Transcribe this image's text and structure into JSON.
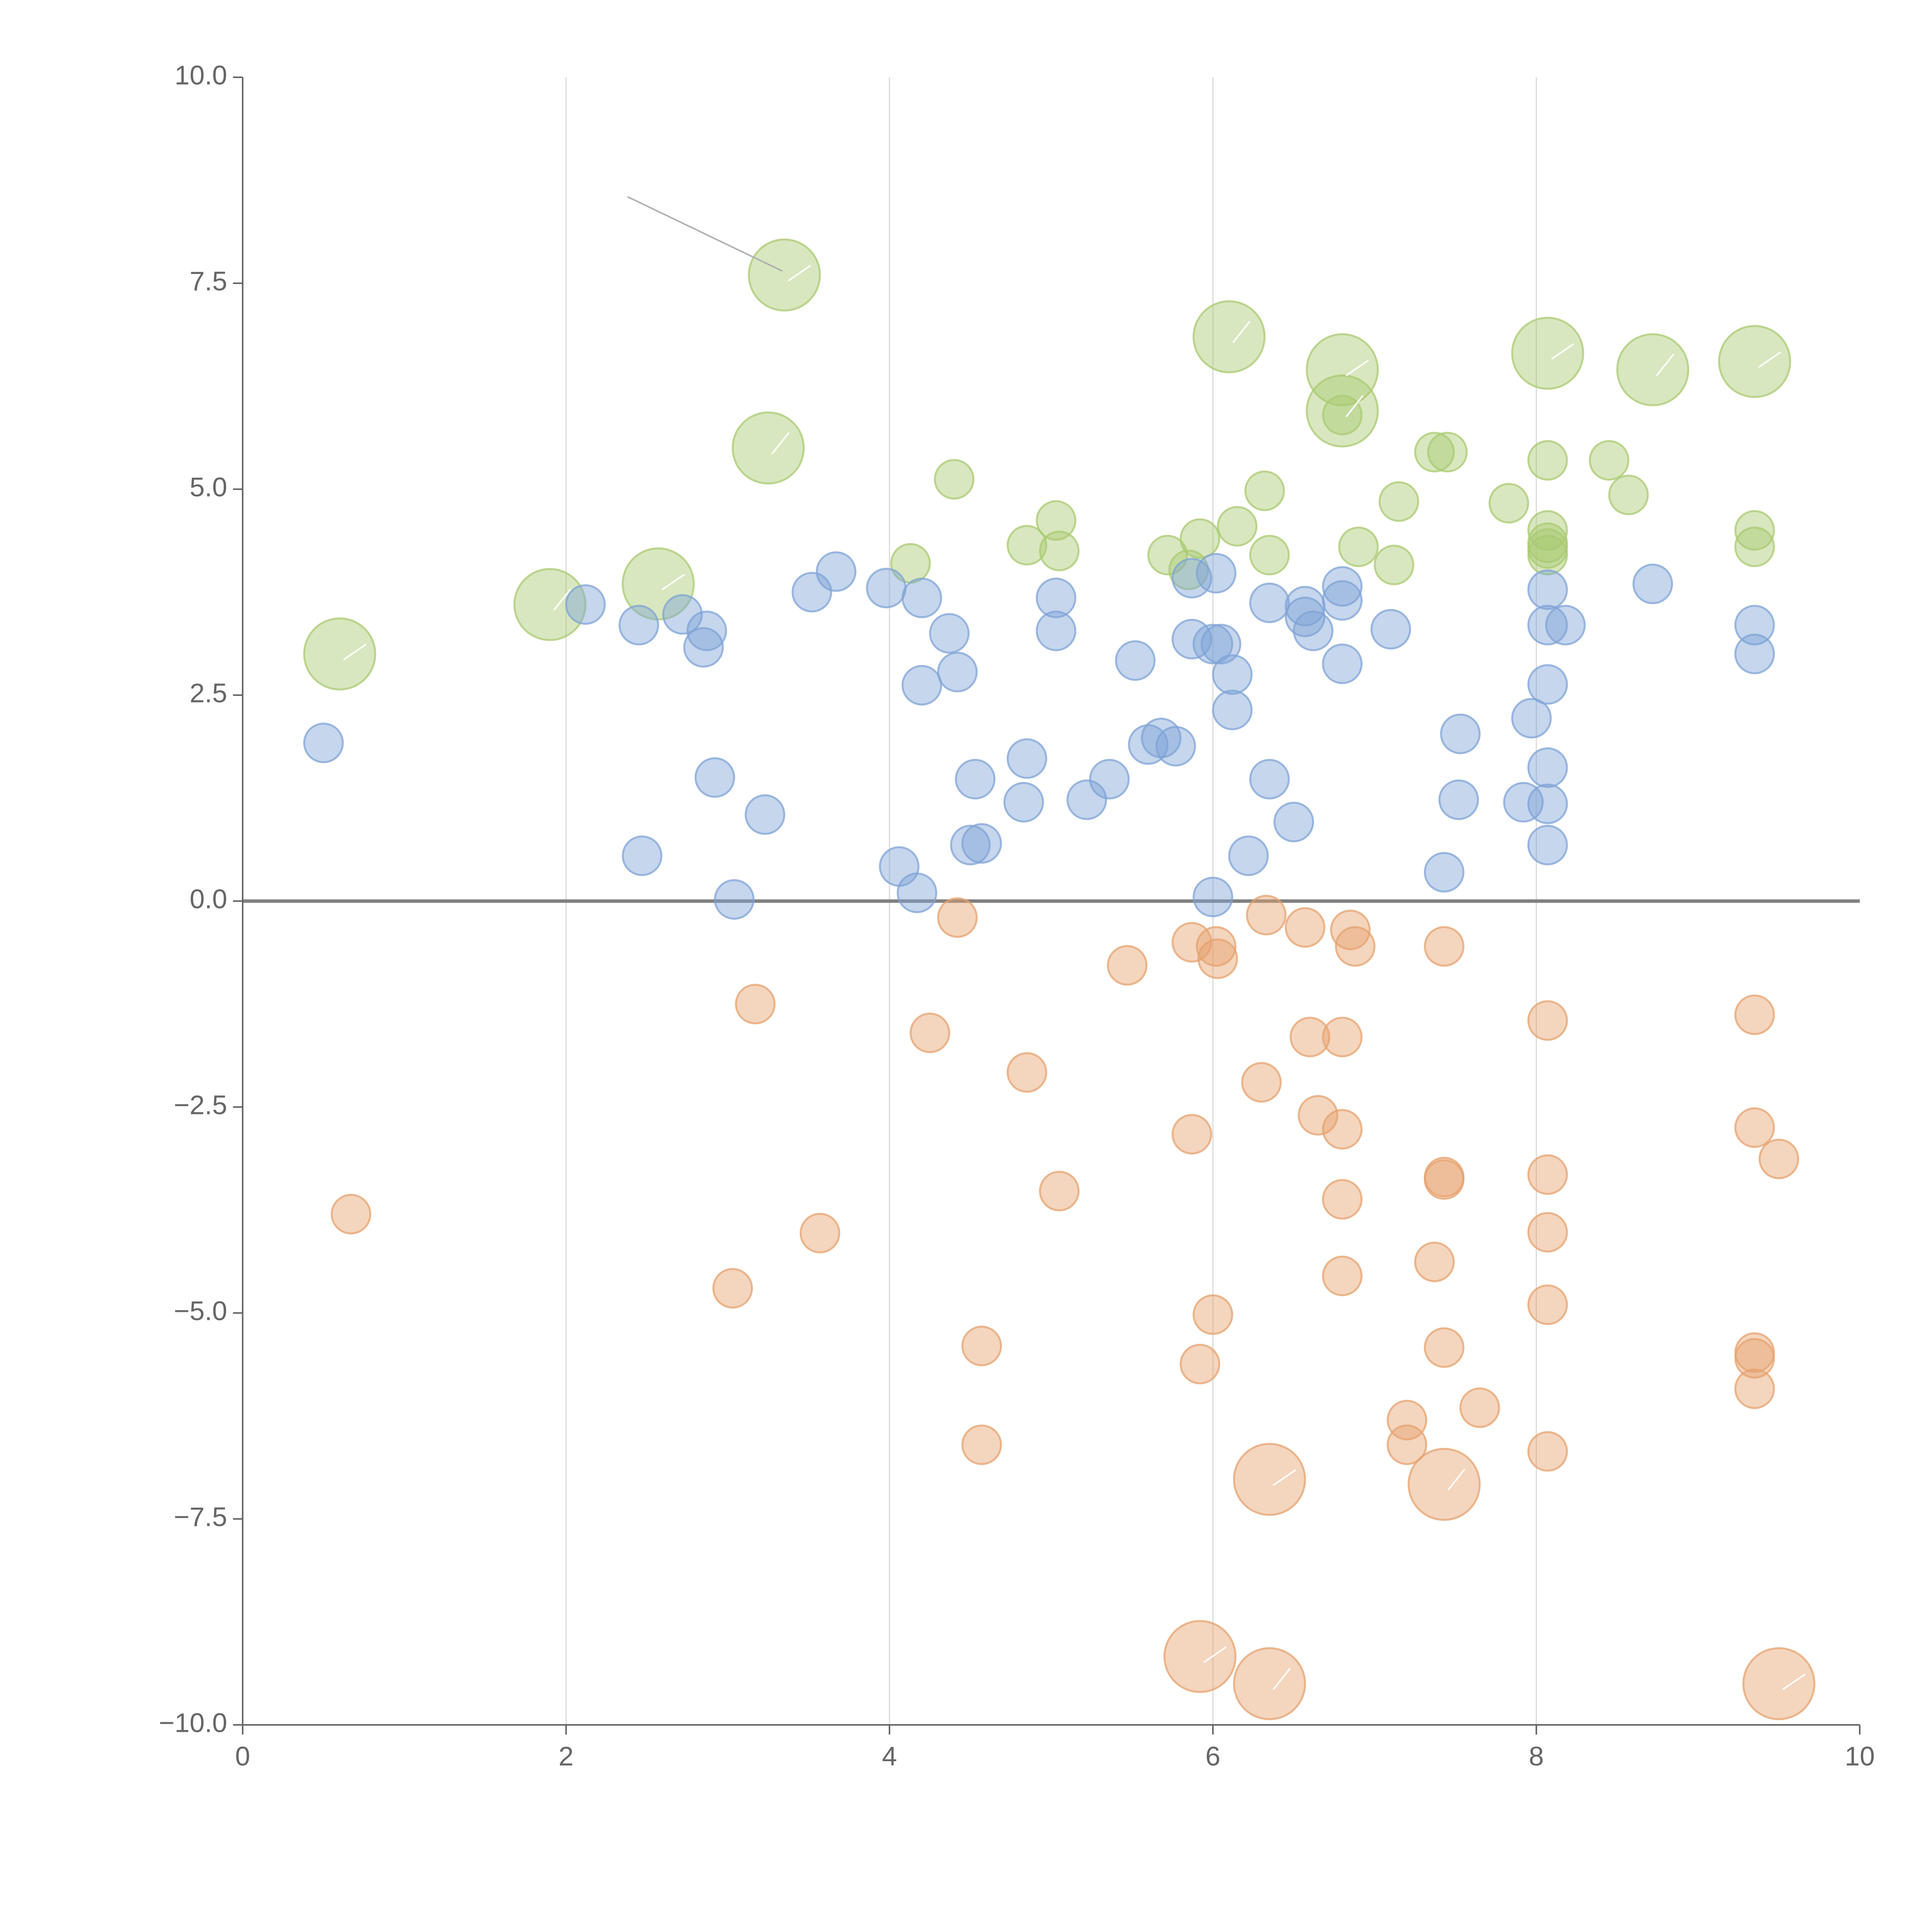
{
  "chart_data": {
    "type": "scatter",
    "title": "",
    "xlabel": "",
    "ylabel": "",
    "xlim": [
      0,
      10
    ],
    "ylim": [
      -10,
      10
    ],
    "grid": "vertical",
    "legend": "none",
    "x_ticks": [
      0,
      2,
      4,
      6,
      8,
      10
    ],
    "x_tick_labels": [
      "0",
      "2",
      "4",
      "6",
      "8",
      "10"
    ],
    "y_ticks": [
      -10,
      -7.5,
      -5,
      -2.5,
      0,
      2.5,
      5,
      7.5,
      10
    ],
    "y_tick_labels": [
      "−10.0",
      "−7.5",
      "−5.0",
      "−2.5",
      "0.0",
      "2.5",
      "5.0",
      "7.5",
      "10.0"
    ],
    "reference_line_y": 0,
    "series": [
      {
        "name": "green",
        "color": "#a9c970",
        "points": [
          [
            0.6,
            3.0,
            2
          ],
          [
            1.9,
            3.6,
            2
          ],
          [
            2.57,
            3.85,
            2
          ],
          [
            3.25,
            5.5,
            2
          ],
          [
            3.35,
            7.6,
            2
          ],
          [
            6.1,
            6.85,
            2
          ],
          [
            6.8,
            6.45,
            2
          ],
          [
            6.8,
            5.95,
            2
          ],
          [
            8.07,
            6.65,
            2
          ],
          [
            8.72,
            6.45,
            2
          ],
          [
            9.35,
            6.55,
            2
          ],
          [
            4.13,
            4.1,
            1
          ],
          [
            4.4,
            5.12,
            1
          ],
          [
            4.85,
            4.32,
            1
          ],
          [
            5.03,
            4.62,
            1
          ],
          [
            5.05,
            4.25,
            1
          ],
          [
            5.72,
            4.2,
            1
          ],
          [
            5.92,
            4.4,
            1
          ],
          [
            5.85,
            4.02,
            1
          ],
          [
            6.15,
            4.55,
            1
          ],
          [
            6.32,
            4.98,
            1
          ],
          [
            6.35,
            4.2,
            1
          ],
          [
            6.8,
            5.9,
            1
          ],
          [
            6.9,
            4.3,
            1
          ],
          [
            7.12,
            4.08,
            1
          ],
          [
            7.15,
            4.85,
            1
          ],
          [
            7.37,
            5.45,
            1
          ],
          [
            7.45,
            5.45,
            1
          ],
          [
            7.83,
            4.83,
            1
          ],
          [
            8.07,
            5.35,
            1
          ],
          [
            8.07,
            4.5,
            1
          ],
          [
            8.07,
            4.35,
            1
          ],
          [
            8.07,
            4.28,
            1
          ],
          [
            8.07,
            4.2,
            1
          ],
          [
            8.45,
            5.35,
            1
          ],
          [
            8.57,
            4.93,
            1
          ],
          [
            9.35,
            4.5,
            1
          ],
          [
            9.35,
            4.3,
            1
          ]
        ]
      },
      {
        "name": "blue",
        "color": "#7fa3d6",
        "points": [
          [
            0.5,
            1.92,
            1
          ],
          [
            2.12,
            3.6,
            1
          ],
          [
            2.45,
            3.35,
            1
          ],
          [
            2.72,
            3.48,
            1
          ],
          [
            2.87,
            3.28,
            1
          ],
          [
            2.85,
            3.08,
            1
          ],
          [
            2.92,
            1.5,
            1
          ],
          [
            3.23,
            1.05,
            1
          ],
          [
            2.47,
            0.55,
            1
          ],
          [
            3.04,
            0.02,
            1
          ],
          [
            3.52,
            3.75,
            1
          ],
          [
            3.67,
            4.0,
            1
          ],
          [
            3.98,
            3.8,
            1
          ],
          [
            4.2,
            3.68,
            1
          ],
          [
            4.37,
            3.25,
            1
          ],
          [
            4.42,
            2.78,
            1
          ],
          [
            4.2,
            2.62,
            1
          ],
          [
            4.06,
            0.42,
            1
          ],
          [
            4.17,
            0.1,
            1
          ],
          [
            4.53,
            1.48,
            1
          ],
          [
            4.5,
            0.68,
            1
          ],
          [
            4.57,
            0.7,
            1
          ],
          [
            4.85,
            1.73,
            1
          ],
          [
            4.83,
            1.2,
            1
          ],
          [
            5.03,
            3.68,
            1
          ],
          [
            5.03,
            3.28,
            1
          ],
          [
            5.22,
            1.23,
            1
          ],
          [
            5.36,
            1.48,
            1
          ],
          [
            5.52,
            2.92,
            1
          ],
          [
            5.6,
            1.9,
            1
          ],
          [
            5.68,
            1.98,
            1
          ],
          [
            5.77,
            1.88,
            1
          ],
          [
            5.87,
            3.92,
            1
          ],
          [
            5.87,
            3.18,
            1
          ],
          [
            6.02,
            3.98,
            1
          ],
          [
            6.0,
            3.12,
            1
          ],
          [
            6.05,
            3.12,
            1
          ],
          [
            6.12,
            2.75,
            1
          ],
          [
            6.12,
            2.32,
            1
          ],
          [
            6.0,
            0.05,
            1
          ],
          [
            6.22,
            0.55,
            1
          ],
          [
            6.35,
            3.62,
            1
          ],
          [
            6.35,
            1.48,
            1
          ],
          [
            6.5,
            0.96,
            1
          ],
          [
            6.57,
            3.58,
            1
          ],
          [
            6.57,
            3.45,
            1
          ],
          [
            6.62,
            3.28,
            1
          ],
          [
            6.8,
            3.82,
            1
          ],
          [
            6.8,
            3.65,
            1
          ],
          [
            6.8,
            2.88,
            1
          ],
          [
            7.1,
            3.3,
            1
          ],
          [
            7.43,
            0.35,
            1
          ],
          [
            7.52,
            1.23,
            1
          ],
          [
            7.53,
            2.03,
            1
          ],
          [
            7.92,
            1.2,
            1
          ],
          [
            7.97,
            2.22,
            1
          ],
          [
            8.07,
            3.78,
            1
          ],
          [
            8.07,
            3.35,
            1
          ],
          [
            8.07,
            2.63,
            1
          ],
          [
            8.07,
            1.62,
            1
          ],
          [
            8.07,
            1.18,
            1
          ],
          [
            8.07,
            0.68,
            1
          ],
          [
            8.18,
            3.35,
            1
          ],
          [
            8.72,
            3.85,
            1
          ],
          [
            9.35,
            3.35,
            1
          ],
          [
            9.35,
            3.0,
            1
          ]
        ]
      },
      {
        "name": "orange",
        "color": "#e6a26e",
        "points": [
          [
            0.67,
            -3.8,
            1
          ],
          [
            3.03,
            -4.7,
            1
          ],
          [
            3.17,
            -1.25,
            1
          ],
          [
            3.57,
            -4.03,
            1
          ],
          [
            4.25,
            -1.6,
            1
          ],
          [
            4.42,
            -0.2,
            1
          ],
          [
            4.57,
            -5.4,
            1
          ],
          [
            4.57,
            -6.6,
            1
          ],
          [
            4.85,
            -2.08,
            1
          ],
          [
            5.05,
            -3.52,
            1
          ],
          [
            5.47,
            -0.78,
            1
          ],
          [
            5.87,
            -0.5,
            1
          ],
          [
            5.87,
            -2.83,
            1
          ],
          [
            5.92,
            -5.62,
            1
          ],
          [
            6.02,
            -0.55,
            1
          ],
          [
            6.03,
            -0.7,
            1
          ],
          [
            6.0,
            -5.02,
            1
          ],
          [
            6.3,
            -2.2,
            1
          ],
          [
            6.33,
            -0.17,
            1
          ],
          [
            6.57,
            -0.32,
            1
          ],
          [
            6.6,
            -1.65,
            1
          ],
          [
            6.65,
            -2.6,
            1
          ],
          [
            6.8,
            -1.65,
            1
          ],
          [
            6.8,
            -2.77,
            1
          ],
          [
            6.8,
            -3.62,
            1
          ],
          [
            6.8,
            -4.55,
            1
          ],
          [
            6.85,
            -0.35,
            1
          ],
          [
            6.88,
            -0.55,
            1
          ],
          [
            7.2,
            -6.3,
            1
          ],
          [
            7.2,
            -6.6,
            1
          ],
          [
            7.37,
            -4.38,
            1
          ],
          [
            7.43,
            -0.55,
            1
          ],
          [
            7.43,
            -3.35,
            1
          ],
          [
            7.43,
            -3.38,
            1
          ],
          [
            7.43,
            -5.42,
            1
          ],
          [
            7.65,
            -6.15,
            1
          ],
          [
            8.07,
            -1.45,
            1
          ],
          [
            8.07,
            -3.32,
            1
          ],
          [
            8.07,
            -4.02,
            1
          ],
          [
            8.07,
            -4.9,
            1
          ],
          [
            8.07,
            -6.68,
            1
          ],
          [
            9.35,
            -1.38,
            1
          ],
          [
            9.35,
            -2.75,
            1
          ],
          [
            9.35,
            -5.48,
            1
          ],
          [
            9.35,
            -5.55,
            1
          ],
          [
            9.35,
            -5.92,
            1
          ],
          [
            9.5,
            -3.13,
            1
          ],
          [
            6.35,
            -7.02,
            2
          ],
          [
            7.43,
            -7.08,
            2
          ],
          [
            5.92,
            -9.17,
            2
          ],
          [
            6.35,
            -9.5,
            2
          ],
          [
            9.5,
            -9.5,
            2
          ]
        ]
      }
    ]
  }
}
